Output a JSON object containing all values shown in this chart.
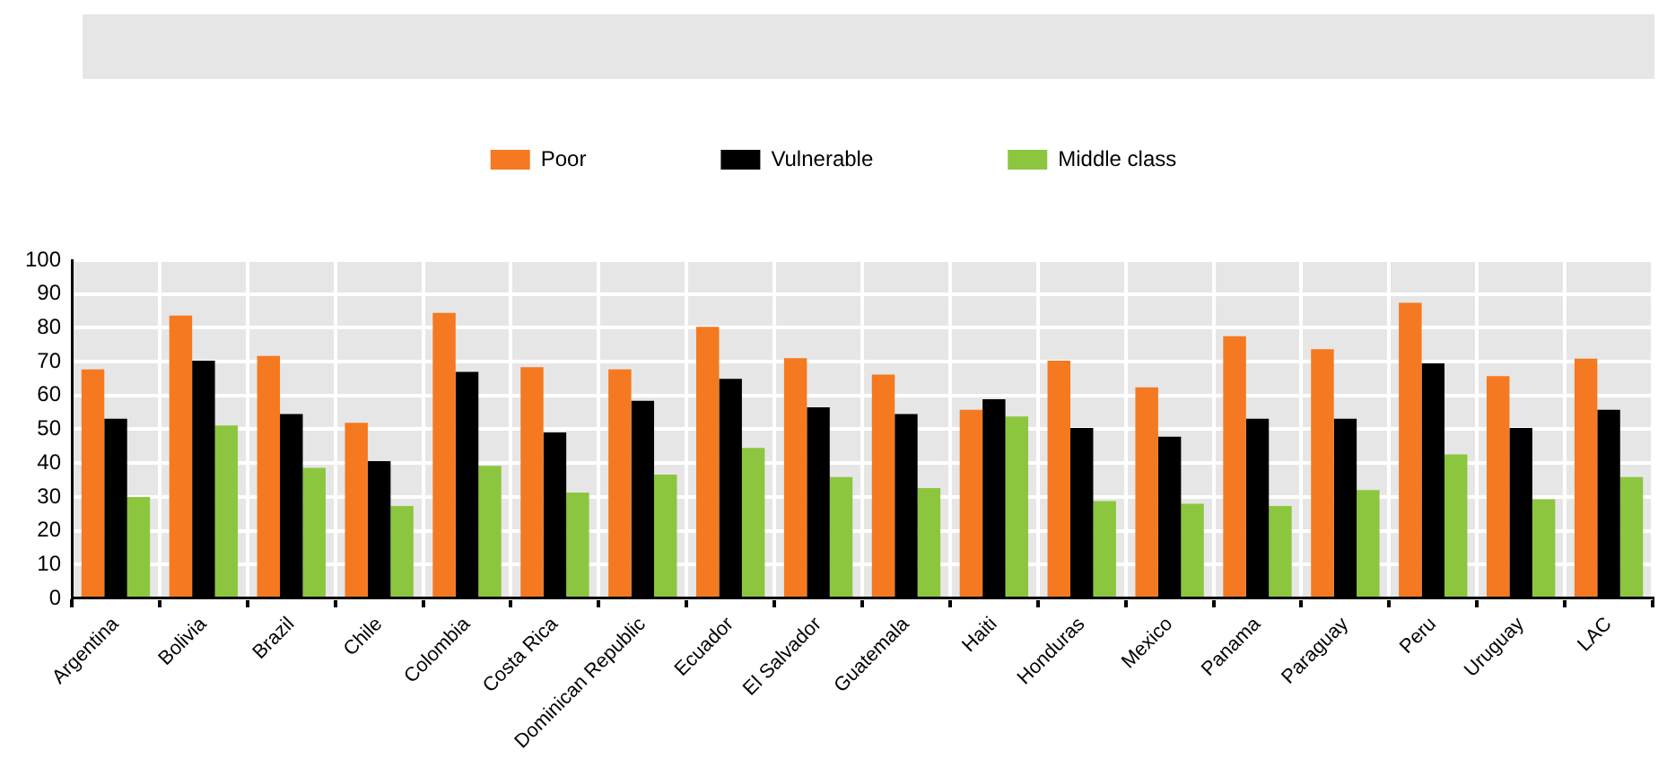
{
  "chart_data": {
    "type": "bar",
    "categories": [
      "Argentina",
      "Bolivia",
      "Brazil",
      "Chile",
      "Colombia",
      "Costa Rica",
      "Dominican Republic",
      "Ecuador",
      "El Salvador",
      "Guatemala",
      "Haiti",
      "Honduras",
      "Mexico",
      "Panama",
      "Paraguay",
      "Peru",
      "Uruguay",
      "LAC"
    ],
    "series": [
      {
        "name": "Poor",
        "color": "#f47920",
        "values": [
          67.7,
          83.6,
          71.7,
          51.9,
          84.4,
          68.4,
          67.7,
          80.3,
          71,
          66.2,
          55.8,
          70.3,
          62.4,
          77.5,
          73.7,
          87.4,
          65.7,
          70.9
        ]
      },
      {
        "name": "Vulnerable",
        "color": "#000000",
        "values": [
          53.1,
          70.3,
          54.5,
          40.6,
          67,
          49.1,
          58.4,
          64.9,
          56.5,
          54.5,
          58.9,
          50.4,
          47.8,
          53.1,
          53.1,
          69.5,
          50.4,
          55.8
        ]
      },
      {
        "name": "Middle class",
        "color": "#8cc63f",
        "values": [
          30,
          51.1,
          38.6,
          27.3,
          39.2,
          31.3,
          36.6,
          44.5,
          35.9,
          32.6,
          53.8,
          28.8,
          28,
          27.3,
          32,
          42.6,
          29.3,
          35.9
        ]
      }
    ],
    "ylim": [
      0,
      100
    ],
    "yticks": [
      0,
      10,
      20,
      30,
      40,
      50,
      60,
      70,
      80,
      90,
      100
    ],
    "grid": true,
    "legend": "top"
  }
}
